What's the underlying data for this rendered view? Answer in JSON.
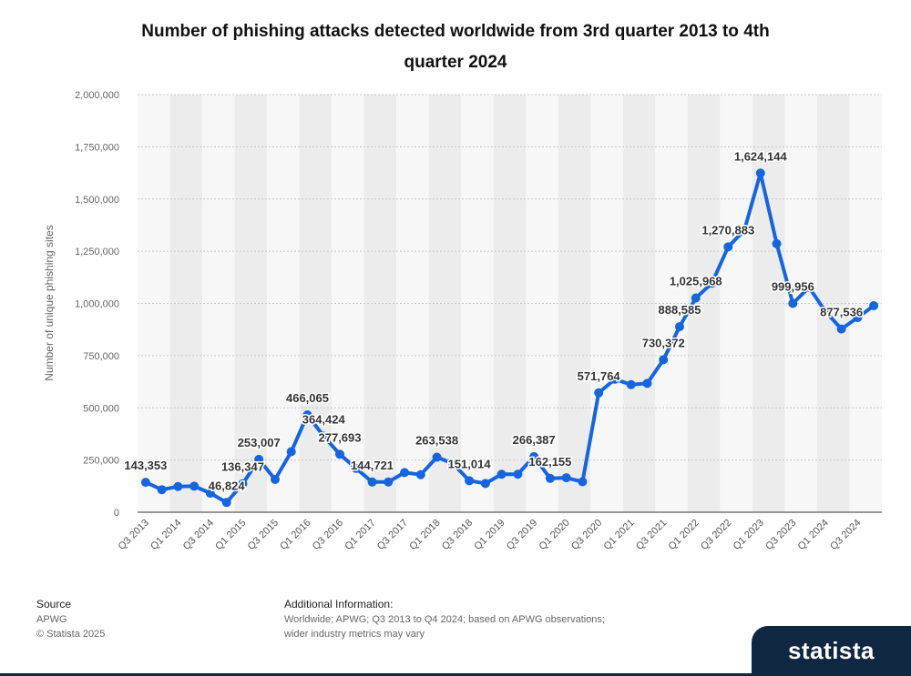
{
  "chart_data": {
    "type": "line",
    "title": [
      "Number of phishing attacks detected worldwide from 3rd quarter 2013 to 4th",
      "quarter 2024"
    ],
    "y_label": "Number of unique phishing sites",
    "categories": [
      "Q3 2013",
      null,
      "Q1 2014",
      null,
      "Q3 2014",
      null,
      "Q1 2015",
      null,
      "Q3 2015",
      null,
      "Q1 2016",
      null,
      "Q3 2016",
      null,
      "Q1 2017",
      null,
      "Q3 2017",
      null,
      "Q1 2018",
      null,
      "Q3 2018",
      null,
      "Q1 2019",
      null,
      "Q3 2019",
      null,
      "Q1 2020",
      null,
      "Q3 2020",
      null,
      "Q1 2021",
      null,
      "Q3 2021",
      null,
      "Q1 2022",
      null,
      "Q3 2022",
      null,
      "Q1 2023",
      null,
      "Q3 2023",
      null,
      "Q1 2024",
      null,
      "Q3 2024",
      null
    ],
    "values": [
      143353,
      108000,
      123000,
      125000,
      91000,
      46824,
      136347,
      253007,
      157000,
      290000,
      466065,
      364424,
      277693,
      210000,
      144721,
      145000,
      190000,
      180000,
      263538,
      233000,
      151014,
      138000,
      182000,
      182000,
      266387,
      162155,
      165000,
      146000,
      571764,
      637000,
      611000,
      617000,
      730372,
      888585,
      1025968,
      1097000,
      1270883,
      1350000,
      1624144,
      1286000,
      999956,
      1077000,
      963000,
      877536,
      932000,
      989000
    ],
    "value_labels": [
      "143,353",
      null,
      null,
      null,
      null,
      "46,824",
      "136,347",
      "253,007",
      null,
      null,
      "466,065",
      "364,424",
      "277,693",
      null,
      "144,721",
      null,
      null,
      null,
      "263,538",
      null,
      "151,014",
      null,
      null,
      null,
      "266,387",
      "162,155",
      null,
      null,
      "571,764",
      null,
      null,
      null,
      "730,372",
      "888,585",
      "1,025,968",
      null,
      "1,270,883",
      null,
      "1,624,144",
      null,
      "999,956",
      null,
      null,
      "877,536",
      null,
      null
    ],
    "color": "#1565e0",
    "ylim": [
      0,
      2000000
    ],
    "yticks": [
      0,
      {
        "value": 250000,
        "label": "250,000"
      },
      {
        "value": 500000,
        "label": "500,000"
      },
      {
        "value": 750000,
        "label": "750,000"
      },
      {
        "value": 1000000,
        "label": "1,000,000"
      },
      {
        "value": 1250000,
        "label": "1,250,000"
      },
      {
        "value": 1500000,
        "label": "1,500,000"
      },
      {
        "value": 1750000,
        "label": "1,750,000"
      },
      {
        "value": 2000000,
        "label": "2,000,000"
      }
    ],
    "grid": true
  },
  "footer": {
    "source_heading": "Source",
    "source": "APWG",
    "copyright": "© Statista 2025",
    "info_heading": "Additional Information:",
    "info": [
      "Worldwide; APWG; Q3 2013 to Q4 2024; based on APWG observations;",
      "wider industry metrics may vary"
    ],
    "logo": "statista"
  }
}
